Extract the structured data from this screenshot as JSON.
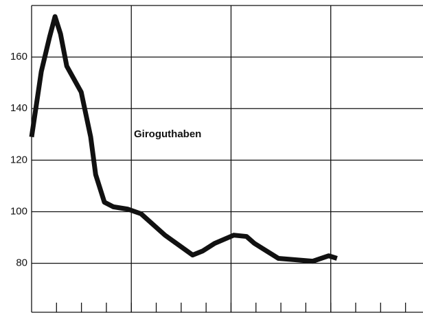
{
  "chart_data": {
    "type": "line",
    "annotation": "Giroguthaben",
    "x": [
      0,
      0.39,
      0.72,
      0.94,
      1.16,
      1.41,
      1.99,
      2.37,
      2.57,
      2.92,
      3.28,
      3.86,
      4.39,
      5.35,
      6.46,
      6.87,
      7.34,
      8.11,
      8.62,
      8.94,
      9.9,
      11.28,
      11.92,
      12.25
    ],
    "series": [
      {
        "color": "#111111",
        "values": [
          129,
          154.4,
          167.7,
          175.7,
          169,
          156.5,
          146.4,
          129,
          114.4,
          103.7,
          101.9,
          101,
          99.2,
          90.9,
          83.2,
          84.8,
          87.7,
          90.9,
          90.4,
          87.7,
          81.9,
          80.8,
          82.9,
          81.9
        ]
      }
    ],
    "xlim": [
      0,
      15.7
    ],
    "ylim": [
      61,
      180
    ],
    "yticks": [
      80,
      100,
      120,
      140,
      160
    ],
    "xticks": [
      1,
      2,
      3,
      4,
      5,
      6,
      7,
      8,
      9,
      10,
      11,
      12,
      13,
      14,
      15
    ],
    "xgrid": [
      4,
      8,
      12
    ],
    "grid": true
  }
}
